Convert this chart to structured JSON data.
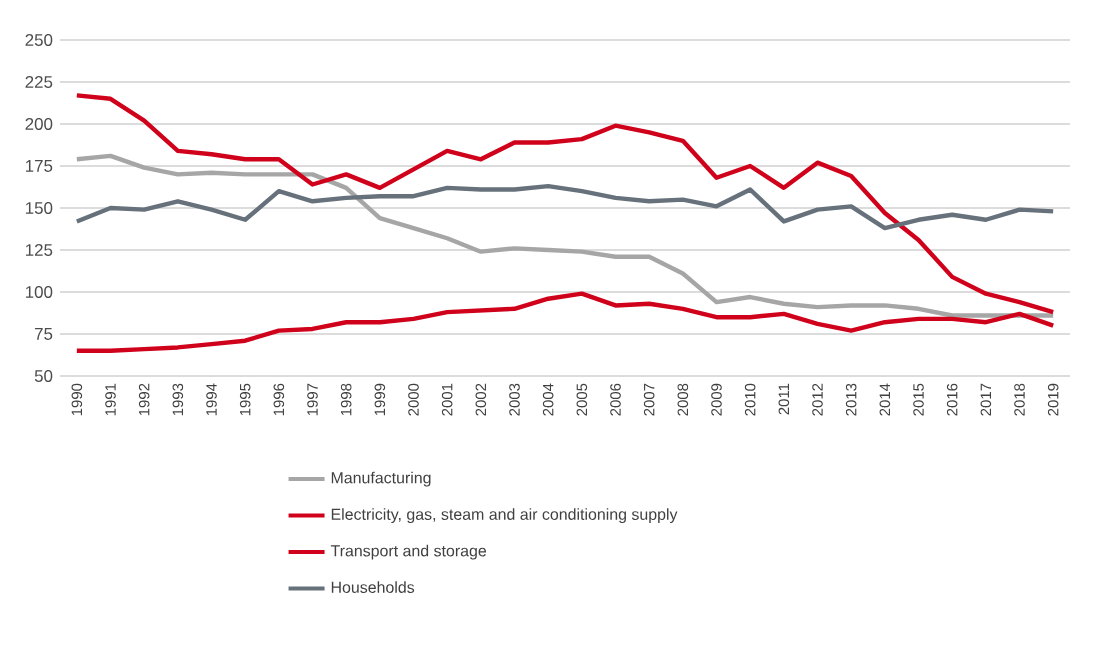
{
  "chart_data": {
    "type": "line",
    "categories": [
      "1990",
      "1991",
      "1992",
      "1993",
      "1994",
      "1995",
      "1996",
      "1997",
      "1998",
      "1999",
      "2000",
      "2001",
      "2002",
      "2003",
      "2004",
      "2005",
      "2006",
      "2007",
      "2008",
      "2009",
      "2010",
      "2011",
      "2012",
      "2013",
      "2014",
      "2015",
      "2016",
      "2017",
      "2018",
      "2019"
    ],
    "series": [
      {
        "name": "Manufacturing",
        "color": "#a6a6a6",
        "values": [
          179,
          181,
          174,
          170,
          171,
          170,
          170,
          170,
          162,
          144,
          138,
          132,
          124,
          126,
          125,
          124,
          121,
          121,
          111,
          94,
          97,
          93,
          91,
          92,
          92,
          90,
          86,
          86,
          86,
          86
        ]
      },
      {
        "name": "Electricity, gas, steam and air conditioning supply",
        "color": "#d0021b",
        "values": [
          217,
          215,
          202,
          184,
          182,
          179,
          179,
          164,
          170,
          162,
          173,
          184,
          179,
          189,
          189,
          191,
          199,
          195,
          190,
          168,
          175,
          162,
          177,
          169,
          147,
          131,
          109,
          99,
          94,
          88
        ]
      },
      {
        "name": "Transport and storage",
        "color": "#d0021b",
        "values": [
          65,
          65,
          66,
          67,
          69,
          71,
          77,
          78,
          82,
          82,
          84,
          88,
          89,
          90,
          96,
          99,
          92,
          93,
          90,
          85,
          85,
          87,
          81,
          77,
          82,
          84,
          84,
          82,
          87,
          80
        ]
      },
      {
        "name": "Households",
        "color": "#67717b",
        "values": [
          142,
          150,
          149,
          154,
          149,
          143,
          160,
          154,
          156,
          157,
          157,
          162,
          161,
          161,
          163,
          160,
          156,
          154,
          155,
          151,
          161,
          142,
          149,
          151,
          138,
          143,
          146,
          143,
          149,
          148
        ]
      }
    ],
    "ylim": [
      50,
      250
    ],
    "yticks": [
      50,
      75,
      100,
      125,
      150,
      175,
      200,
      225,
      250
    ],
    "grid": "y",
    "legend": "bottom",
    "marker": "none",
    "line_style": "solid"
  }
}
